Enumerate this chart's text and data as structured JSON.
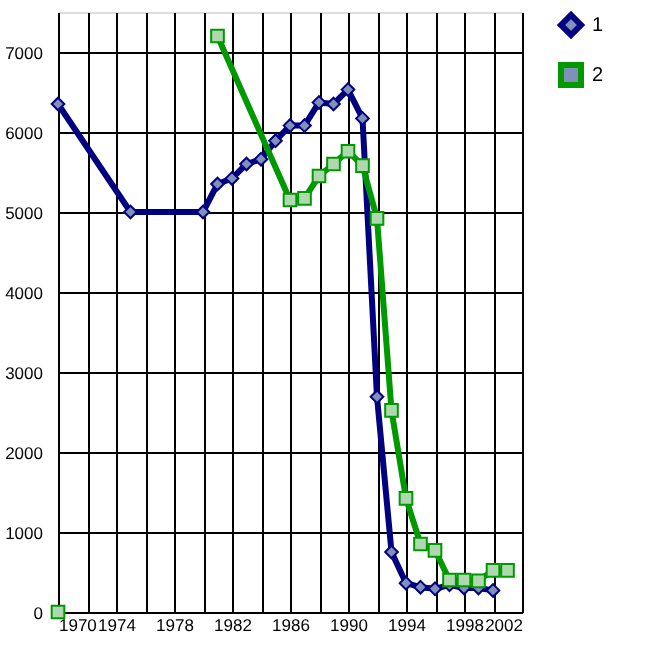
{
  "chart_data": {
    "type": "line",
    "xlim": [
      1970,
      2002
    ],
    "ylim": [
      0,
      7500
    ],
    "xticks": [
      1970,
      {
        "value": 1972,
        "label": null
      },
      1974,
      {
        "value": 1976,
        "label": null
      },
      1978,
      {
        "value": 1980,
        "label": null
      },
      1982,
      {
        "value": 1984,
        "label": null
      },
      1986,
      {
        "value": 1988,
        "label": null
      },
      1990,
      {
        "value": 1992,
        "label": null
      },
      1994,
      {
        "value": 1996,
        "label": null
      },
      1998,
      {
        "value": 2000,
        "label": null
      },
      2002
    ],
    "yticks": [
      0,
      1000,
      2000,
      3000,
      4000,
      5000,
      6000,
      7000
    ],
    "grid": true,
    "legend": "right",
    "series": [
      {
        "name": "1",
        "color": "#000080",
        "marker": "diamond",
        "x": [
          1970,
          1975,
          1980,
          1981,
          1982,
          1983,
          1984,
          1985,
          1986,
          1987,
          1988,
          1989,
          1990,
          1991,
          1992,
          1993,
          1994,
          1995,
          1996,
          1997,
          1998,
          1999,
          2000
        ],
        "values": [
          6350,
          5000,
          5000,
          5350,
          5420,
          5600,
          5660,
          5890,
          6080,
          6080,
          6370,
          6350,
          6530,
          6170,
          2690,
          750,
          360,
          310,
          290,
          340,
          300,
          300,
          270
        ]
      },
      {
        "name": "2",
        "color": "#009900",
        "marker": "square",
        "x": [
          1970,
          1975,
          1981,
          1986,
          1987,
          1988,
          1989,
          1990,
          1991,
          1992,
          1993,
          1994,
          1995,
          1996,
          1997,
          1998,
          1999,
          2000,
          2001
        ],
        "values": [
          0,
          null,
          7200,
          5150,
          5170,
          5450,
          5600,
          5760,
          5580,
          4920,
          2520,
          1420,
          850,
          770,
          400,
          400,
          390,
          520,
          520
        ]
      }
    ]
  }
}
